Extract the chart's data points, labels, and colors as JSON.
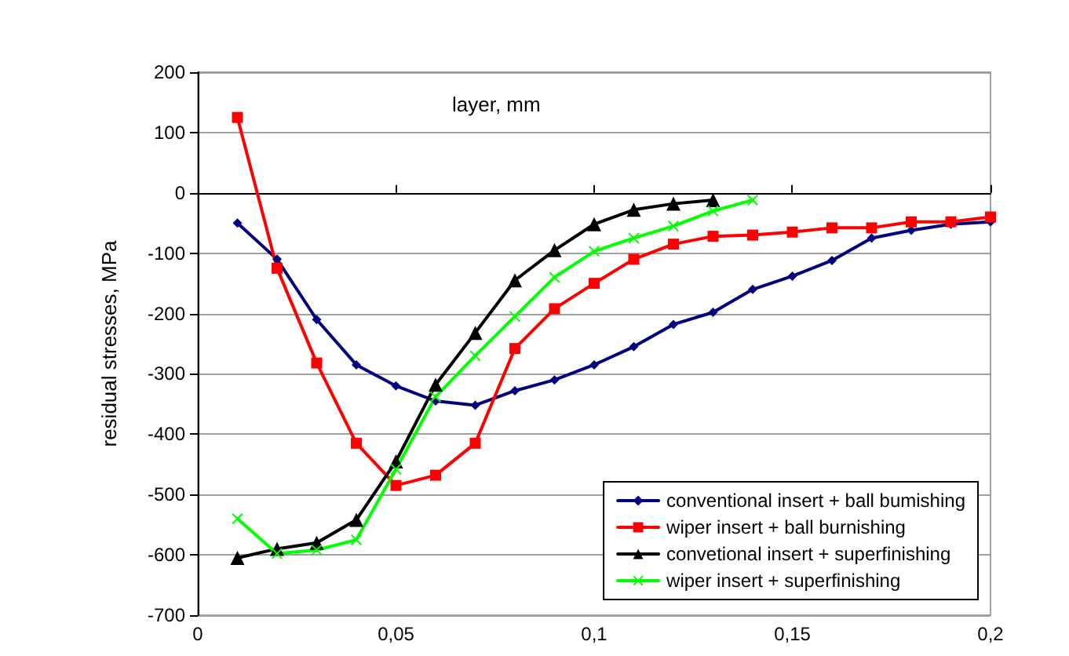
{
  "chart_data": {
    "type": "line",
    "xlabel": "layer, mm",
    "ylabel": "residual stresses, MPa",
    "xlim": [
      0,
      0.2
    ],
    "xticks": [
      {
        "value": 0,
        "label": "0"
      },
      {
        "value": 0.05,
        "label": "0,05"
      },
      {
        "value": 0.1,
        "label": "0,1"
      },
      {
        "value": 0.15,
        "label": "0,15"
      },
      {
        "value": 0.2,
        "label": "0,2"
      }
    ],
    "ylim": [
      -700,
      200
    ],
    "yticks": [
      -700,
      -600,
      -500,
      -400,
      -300,
      -200,
      -100,
      0,
      100,
      200
    ],
    "grid": "y",
    "legend": "bottom right",
    "series": [
      {
        "name": "conventional insert + ball bumishing",
        "color": "#000080",
        "marker": "diamond",
        "x": [
          0.01,
          0.02,
          0.03,
          0.04,
          0.05,
          0.06,
          0.07,
          0.08,
          0.09,
          0.1,
          0.11,
          0.12,
          0.13,
          0.14,
          0.15,
          0.16,
          0.17,
          0.18,
          0.19,
          0.2
        ],
        "values": [
          -50,
          -110,
          -210,
          -285,
          -320,
          -345,
          -352,
          -328,
          -310,
          -285,
          -255,
          -218,
          -198,
          -160,
          -138,
          -112,
          -75,
          -62,
          -52,
          -48
        ]
      },
      {
        "name": "wiper insert + ball burnishing",
        "color": "#ff0000",
        "marker": "square",
        "x": [
          0.01,
          0.02,
          0.03,
          0.04,
          0.05,
          0.06,
          0.07,
          0.08,
          0.09,
          0.1,
          0.11,
          0.12,
          0.13,
          0.14,
          0.15,
          0.16,
          0.17,
          0.18,
          0.19,
          0.2
        ],
        "values": [
          125,
          -125,
          -282,
          -415,
          -485,
          -468,
          -415,
          -258,
          -192,
          -150,
          -110,
          -85,
          -72,
          -70,
          -65,
          -58,
          -58,
          -48,
          -48,
          -40
        ]
      },
      {
        "name": "convetional insert + superfinishing",
        "color": "#000000",
        "marker": "triangle",
        "x": [
          0.01,
          0.02,
          0.03,
          0.04,
          0.05,
          0.06,
          0.07,
          0.08,
          0.09,
          0.1,
          0.11,
          0.12,
          0.13
        ],
        "values": [
          -605,
          -590,
          -580,
          -542,
          -445,
          -318,
          -232,
          -145,
          -95,
          -52,
          -28,
          -18,
          -12
        ]
      },
      {
        "name": "wiper insert + superfinishing",
        "color": "#00ff00",
        "marker": "cross",
        "x": [
          0.01,
          0.02,
          0.03,
          0.04,
          0.05,
          0.06,
          0.07,
          0.08,
          0.09,
          0.1,
          0.11,
          0.12,
          0.13,
          0.14
        ],
        "values": [
          -540,
          -598,
          -592,
          -575,
          -458,
          -338,
          -270,
          -205,
          -140,
          -97,
          -75,
          -55,
          -30,
          -12
        ]
      }
    ]
  }
}
